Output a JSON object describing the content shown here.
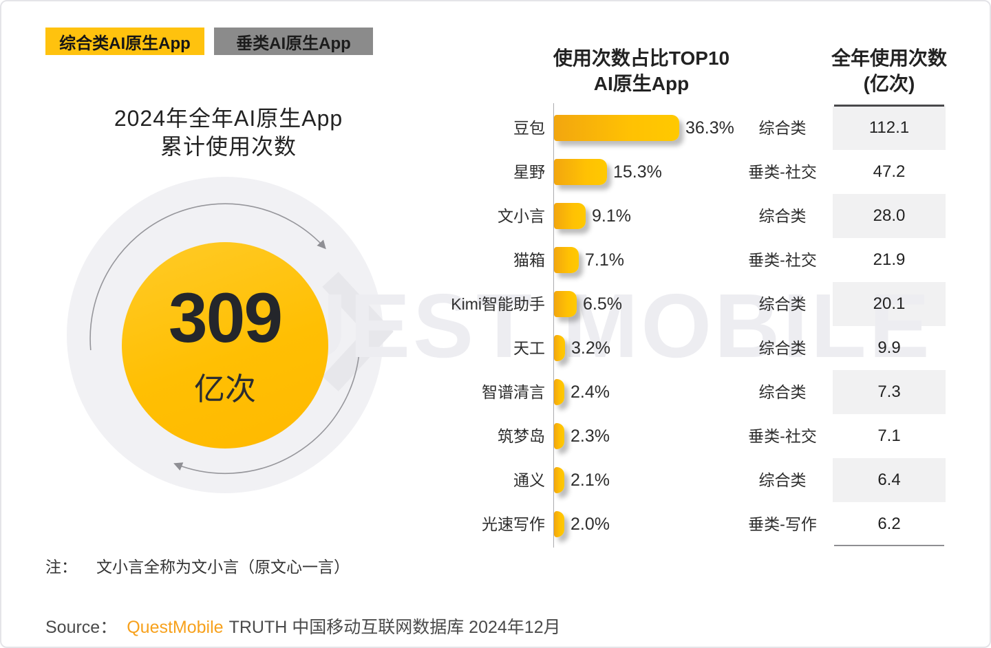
{
  "legend": [
    {
      "label": "综合类AI原生App",
      "color": "#FFC20E"
    },
    {
      "label": "垂类AI原生App",
      "color": "#8B8B8B"
    }
  ],
  "left_panel": {
    "title_line1": "2024年全年AI原生App",
    "title_line2": "累计使用次数",
    "total_value": "309",
    "total_unit": "亿次"
  },
  "watermark": "QUEST MOBILE",
  "chart_data": {
    "type": "bar",
    "orientation": "horizontal",
    "title_line1": "使用次数占比TOP10",
    "title_line2": "AI原生App",
    "value_header_line1": "全年使用次数",
    "value_header_line2": "(亿次)",
    "categories": [
      "豆包",
      "星野",
      "文小言",
      "猫箱",
      "Kimi智能助手",
      "天工",
      "智谱清言",
      "筑梦岛",
      "通义",
      "光速写作"
    ],
    "values": [
      36.3,
      15.3,
      9.1,
      7.1,
      6.5,
      3.2,
      2.4,
      2.3,
      2.1,
      2.0
    ],
    "percent_labels": [
      "36.3%",
      "15.3%",
      "9.1%",
      "7.1%",
      "6.5%",
      "3.2%",
      "2.4%",
      "2.3%",
      "2.1%",
      "2.0%"
    ],
    "app_types": [
      "综合类",
      "垂类-社交",
      "综合类",
      "垂类-社交",
      "综合类",
      "综合类",
      "综合类",
      "垂类-社交",
      "综合类",
      "垂类-写作"
    ],
    "annual_uses_yi": [
      "112.1",
      "47.2",
      "28.0",
      "21.9",
      "20.1",
      "9.9",
      "7.3",
      "7.1",
      "6.4",
      "6.2"
    ],
    "xlim": [
      0,
      40
    ],
    "grid": false,
    "bar_gradient": [
      "#F2A60F",
      "#FFC900"
    ],
    "striped_row_color": "#F1F1F2"
  },
  "note": {
    "label": "注：",
    "text": "文小言全称为文小言（原文心一言）"
  },
  "source": {
    "label": "Source：",
    "brand": "QuestMobile",
    "rest": "TRUTH 中国移动互联网数据库 2024年12月"
  }
}
